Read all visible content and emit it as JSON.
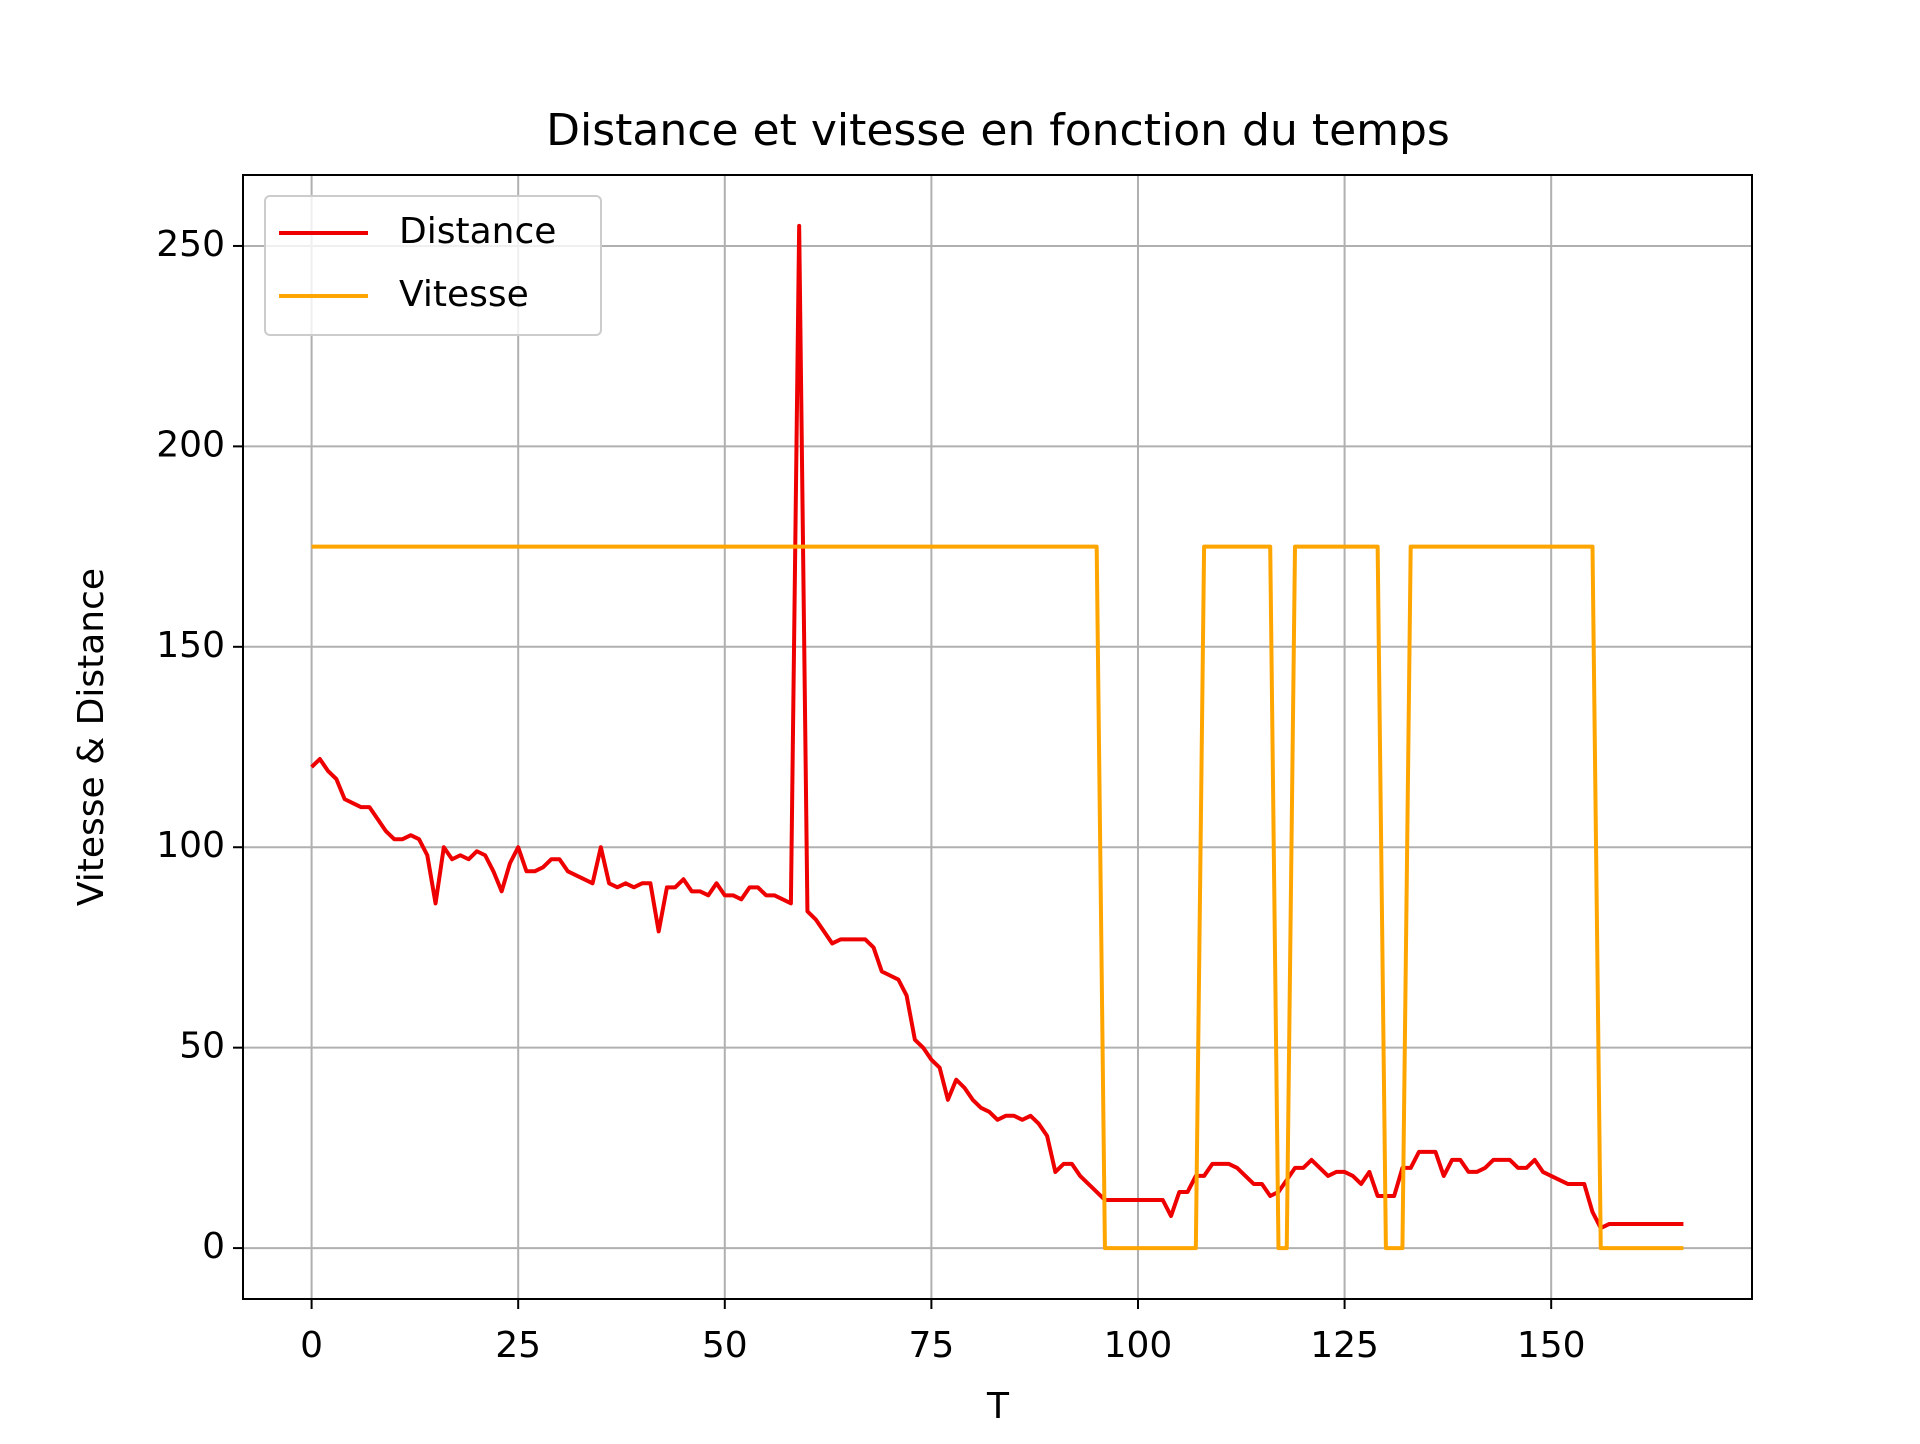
{
  "chart_data": {
    "type": "line",
    "title": "Distance et vitesse en fonction du temps",
    "x_label": "T",
    "y_label": "Vitesse & Distance",
    "x": [
      0,
      1,
      2,
      3,
      4,
      5,
      6,
      7,
      8,
      9,
      10,
      11,
      12,
      13,
      14,
      15,
      16,
      17,
      18,
      19,
      20,
      21,
      22,
      23,
      24,
      25,
      26,
      27,
      28,
      29,
      30,
      31,
      32,
      33,
      34,
      35,
      36,
      37,
      38,
      39,
      40,
      41,
      42,
      43,
      44,
      45,
      46,
      47,
      48,
      49,
      50,
      51,
      52,
      53,
      54,
      55,
      56,
      57,
      58,
      59,
      60,
      61,
      62,
      63,
      64,
      65,
      66,
      67,
      68,
      69,
      70,
      71,
      72,
      73,
      74,
      75,
      76,
      77,
      78,
      79,
      80,
      81,
      82,
      83,
      84,
      85,
      86,
      87,
      88,
      89,
      90,
      91,
      92,
      93,
      94,
      95,
      96,
      97,
      98,
      99,
      100,
      101,
      102,
      103,
      104,
      105,
      106,
      107,
      108,
      109,
      110,
      111,
      112,
      113,
      114,
      115,
      116,
      117,
      118,
      119,
      120,
      121,
      122,
      123,
      124,
      125,
      126,
      127,
      128,
      129,
      130,
      131,
      132,
      133,
      134,
      135,
      136,
      137,
      138,
      139,
      140,
      141,
      142,
      143,
      144,
      145,
      146,
      147,
      148,
      149,
      150,
      151,
      152,
      153,
      154,
      155,
      156,
      157,
      158,
      159,
      160,
      161,
      162,
      163,
      164,
      165,
      166
    ],
    "series": [
      {
        "name": "Distance",
        "color": "#ee0000",
        "values": [
          120,
          122,
          119,
          117,
          112,
          111,
          110,
          110,
          107,
          104,
          102,
          102,
          103,
          102,
          98,
          86,
          100,
          97,
          98,
          97,
          99,
          98,
          94,
          89,
          96,
          100,
          94,
          94,
          95,
          97,
          97,
          94,
          93,
          92,
          91,
          100,
          91,
          90,
          91,
          90,
          91,
          91,
          79,
          90,
          90,
          92,
          89,
          89,
          88,
          91,
          88,
          88,
          87,
          90,
          90,
          88,
          88,
          87,
          86,
          255,
          84,
          82,
          79,
          76,
          77,
          77,
          77,
          77,
          75,
          69,
          68,
          67,
          63,
          52,
          50,
          47,
          45,
          37,
          42,
          40,
          37,
          35,
          34,
          32,
          33,
          33,
          32,
          33,
          31,
          28,
          19,
          21,
          21,
          18,
          16,
          14,
          12,
          12,
          12,
          12,
          12,
          12,
          12,
          12,
          8,
          14,
          14,
          18,
          18,
          21,
          21,
          21,
          20,
          18,
          16,
          16,
          13,
          14,
          17,
          20,
          20,
          22,
          20,
          18,
          19,
          19,
          18,
          16,
          19,
          13,
          13,
          13,
          20,
          20,
          24,
          24,
          24,
          18,
          22,
          22,
          19,
          19,
          20,
          22,
          22,
          22,
          20,
          20,
          22,
          19,
          18,
          17,
          16,
          16,
          16,
          9,
          5,
          6,
          6,
          6,
          6,
          6,
          6,
          6,
          6,
          6,
          6
        ]
      },
      {
        "name": "Vitesse",
        "color": "#ffa500",
        "values": [
          175,
          175,
          175,
          175,
          175,
          175,
          175,
          175,
          175,
          175,
          175,
          175,
          175,
          175,
          175,
          175,
          175,
          175,
          175,
          175,
          175,
          175,
          175,
          175,
          175,
          175,
          175,
          175,
          175,
          175,
          175,
          175,
          175,
          175,
          175,
          175,
          175,
          175,
          175,
          175,
          175,
          175,
          175,
          175,
          175,
          175,
          175,
          175,
          175,
          175,
          175,
          175,
          175,
          175,
          175,
          175,
          175,
          175,
          175,
          175,
          175,
          175,
          175,
          175,
          175,
          175,
          175,
          175,
          175,
          175,
          175,
          175,
          175,
          175,
          175,
          175,
          175,
          175,
          175,
          175,
          175,
          175,
          175,
          175,
          175,
          175,
          175,
          175,
          175,
          175,
          175,
          175,
          175,
          175,
          175,
          175,
          0,
          0,
          0,
          0,
          0,
          0,
          0,
          0,
          0,
          0,
          0,
          0,
          175,
          175,
          175,
          175,
          175,
          175,
          175,
          175,
          175,
          0,
          0,
          175,
          175,
          175,
          175,
          175,
          175,
          175,
          175,
          175,
          175,
          175,
          0,
          0,
          0,
          175,
          175,
          175,
          175,
          175,
          175,
          175,
          175,
          175,
          175,
          175,
          175,
          175,
          175,
          175,
          175,
          175,
          175,
          175,
          175,
          175,
          175,
          175,
          0,
          0,
          0,
          0,
          0,
          0,
          0,
          0,
          0,
          0,
          0
        ]
      }
    ],
    "xlim": [
      -8.3,
      174.3
    ],
    "ylim": [
      -12.7,
      267.7
    ],
    "xticks": [
      0,
      25,
      50,
      75,
      100,
      125,
      150
    ],
    "yticks": [
      0,
      50,
      100,
      150,
      200,
      250
    ],
    "grid": true,
    "legend": "upper left"
  }
}
